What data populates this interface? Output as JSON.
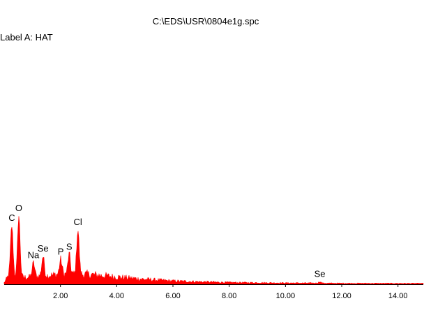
{
  "header": {
    "filename": "C:\\EDS\\USR\\0804e1g.spc",
    "label_a": "Label A: HAT"
  },
  "chart_data": {
    "type": "area",
    "title": "C:\\EDS\\USR\\0804e1g.spc",
    "xlabel": "",
    "ylabel": "",
    "xlim": [
      0,
      14.9
    ],
    "ylim": [
      0,
      100
    ],
    "x_ticks": [
      {
        "value": 2,
        "label": "2.00"
      },
      {
        "value": 4,
        "label": "4.00"
      },
      {
        "value": 6,
        "label": "6.00"
      },
      {
        "value": 8,
        "label": "8.00"
      },
      {
        "value": 10,
        "label": "10.00"
      },
      {
        "value": 12,
        "label": "12.00"
      },
      {
        "value": 14,
        "label": "14.00"
      }
    ],
    "series_color": "#ff0000",
    "peaks": [
      {
        "label": "C",
        "x": 0.27,
        "y": 71
      },
      {
        "label": "O",
        "x": 0.52,
        "y": 83
      },
      {
        "label": "Na",
        "x": 1.04,
        "y": 26
      },
      {
        "label": "Se",
        "x": 1.38,
        "y": 34
      },
      {
        "label": "P",
        "x": 2.01,
        "y": 30
      },
      {
        "label": "S",
        "x": 2.31,
        "y": 36
      },
      {
        "label": "Cl",
        "x": 2.62,
        "y": 66
      },
      {
        "label": "Se",
        "x": 11.22,
        "y": 3
      }
    ],
    "background": [
      {
        "x": 0.0,
        "y": 2
      },
      {
        "x": 0.15,
        "y": 10
      },
      {
        "x": 0.5,
        "y": 8
      },
      {
        "x": 1.0,
        "y": 9
      },
      {
        "x": 2.0,
        "y": 12
      },
      {
        "x": 3.0,
        "y": 12
      },
      {
        "x": 4.0,
        "y": 9
      },
      {
        "x": 5.0,
        "y": 6
      },
      {
        "x": 6.0,
        "y": 4
      },
      {
        "x": 7.0,
        "y": 3
      },
      {
        "x": 8.0,
        "y": 2.2
      },
      {
        "x": 10.0,
        "y": 1.6
      },
      {
        "x": 12.0,
        "y": 1.2
      },
      {
        "x": 14.9,
        "y": 1.0
      }
    ]
  }
}
